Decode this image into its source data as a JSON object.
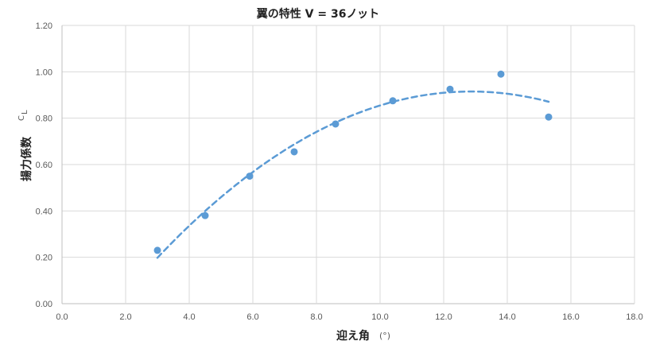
{
  "chart_data": {
    "type": "scatter",
    "title": "翼の特性 V = 36ノット",
    "xlabel": "迎え角",
    "xlabel_unit": "(°)",
    "ylabel": "揚力係数",
    "ylabel_symbol": "C",
    "ylabel_subscript": "L",
    "xlim": [
      0,
      18
    ],
    "ylim": [
      0,
      1.2
    ],
    "x_ticks": [
      "0.0",
      "2.0",
      "4.0",
      "6.0",
      "8.0",
      "10.0",
      "12.0",
      "14.0",
      "16.0",
      "18.0"
    ],
    "y_ticks": [
      "0.00",
      "0.20",
      "0.40",
      "0.60",
      "0.80",
      "1.00",
      "1.20"
    ],
    "grid": true,
    "marker_color": "#5b9bd5",
    "trendline_color": "#5b9bd5",
    "trendline": "polynomial",
    "x": [
      3.0,
      4.5,
      5.9,
      7.3,
      8.6,
      10.4,
      12.2,
      13.8,
      15.3
    ],
    "y": [
      0.23,
      0.38,
      0.55,
      0.655,
      0.775,
      0.875,
      0.925,
      0.99,
      0.805
    ]
  }
}
